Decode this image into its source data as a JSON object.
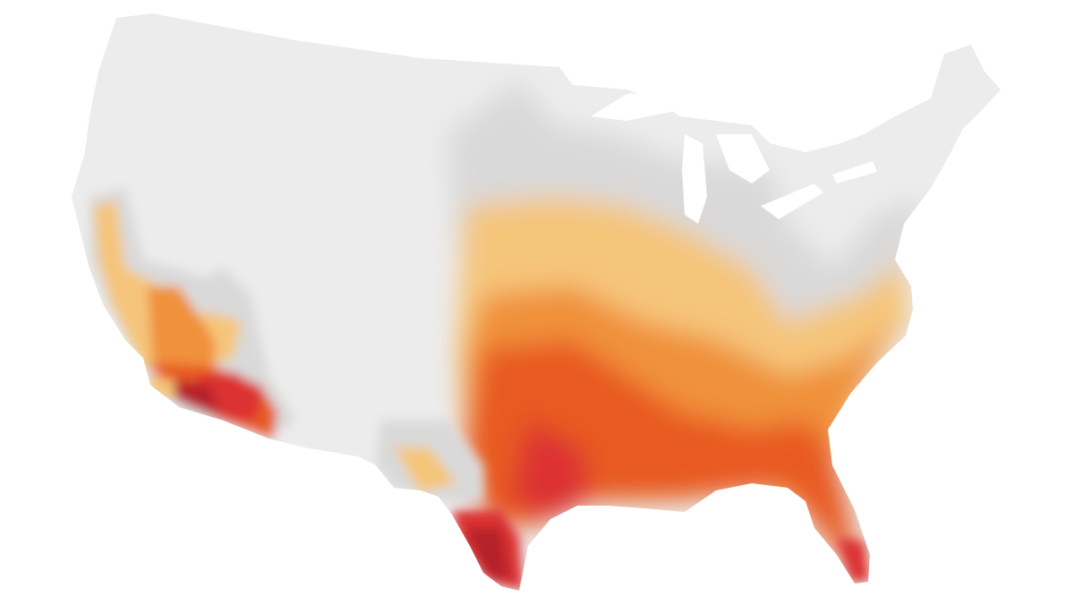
{
  "map": {
    "type": "choropleth",
    "region": "contiguous-united-states",
    "colors": {
      "background": "#ffffff",
      "no_data": "#ececec",
      "low": "#d9d9d9",
      "light": "#f5c57a",
      "medium": "#f0913a",
      "high": "#e85a22",
      "very_high": "#dc3030",
      "extreme": "#b5222a"
    }
  }
}
